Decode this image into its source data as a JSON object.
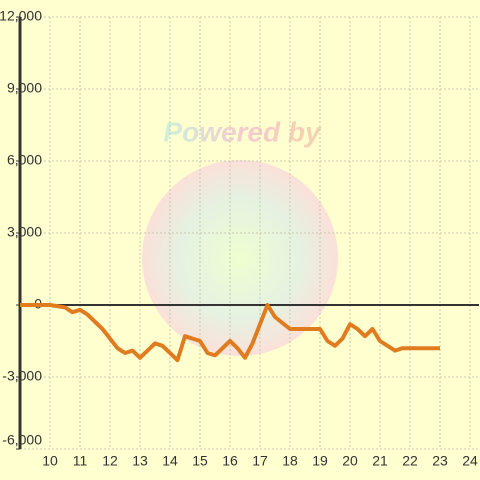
{
  "watermark": "Powered by",
  "chart_data": {
    "type": "line",
    "x": [
      9,
      10,
      10.5,
      10.75,
      11,
      11.25,
      11.75,
      12.25,
      12.5,
      12.75,
      13,
      13.5,
      13.75,
      14.25,
      14.5,
      15,
      15.25,
      15.5,
      16,
      16.25,
      16.5,
      16.75,
      17.25,
      17.5,
      18,
      19,
      19.25,
      19.5,
      19.75,
      20,
      20.25,
      20.5,
      20.75,
      21,
      21.5,
      21.75,
      23
    ],
    "series": [
      {
        "name": "value",
        "color": "#e07b20",
        "values": [
          0,
          0,
          -100,
          -300,
          -200,
          -400,
          -1000,
          -1800,
          -2000,
          -1900,
          -2200,
          -1600,
          -1700,
          -2300,
          -1300,
          -1500,
          -2000,
          -2100,
          -1500,
          -1800,
          -2200,
          -1600,
          0,
          -500,
          -1000,
          -1000,
          -1500,
          -1700,
          -1400,
          -800,
          -1000,
          -1300,
          -1000,
          -1500,
          -1900,
          -1800,
          -1800
        ]
      }
    ],
    "xlim": [
      9,
      24.3
    ],
    "ylim": [
      -6000,
      12000
    ],
    "xticks": [
      10,
      11,
      12,
      13,
      14,
      15,
      16,
      17,
      18,
      19,
      20,
      21,
      22,
      23,
      24
    ],
    "yticks": [
      {
        "value": -6000,
        "label": "-6,000"
      },
      {
        "value": -3000,
        "label": "-3,000"
      },
      0,
      {
        "value": 3000,
        "label": "3,000"
      },
      {
        "value": 6000,
        "label": "6,000"
      },
      {
        "value": 9000,
        "label": "9,000"
      },
      {
        "value": 12000,
        "label": "12,000"
      }
    ],
    "grid": true
  }
}
